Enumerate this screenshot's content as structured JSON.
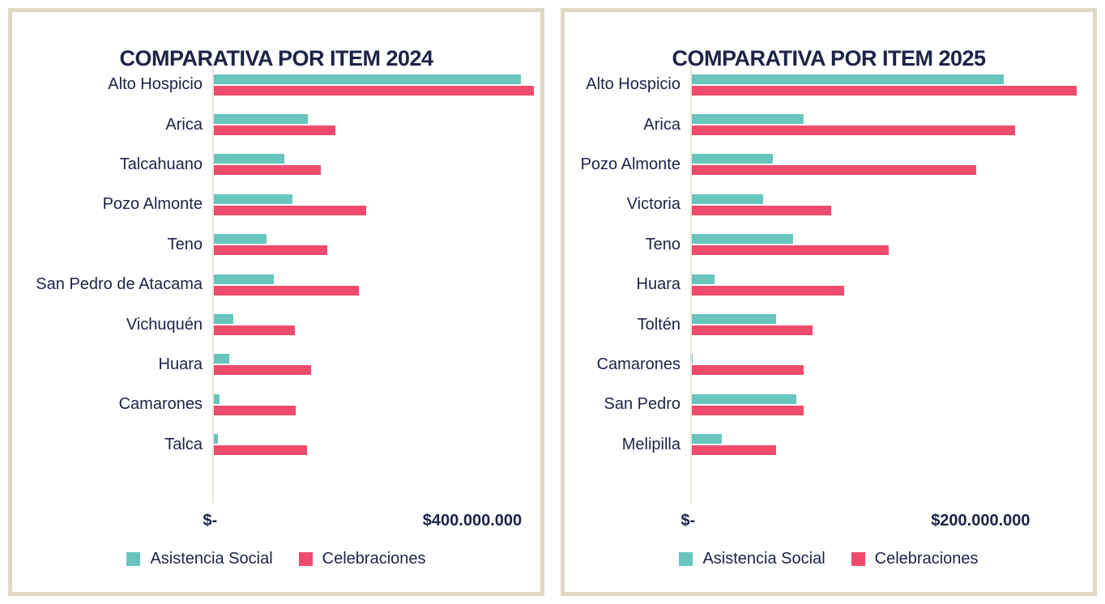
{
  "colors": {
    "asistencia_social": "#68c5bb",
    "celebraciones": "#f04a6d",
    "text_navy": "#1d2347",
    "card_border": "#ded8c5",
    "axis_line": "#ece8db"
  },
  "chart_data": [
    {
      "type": "bar",
      "orientation": "horizontal",
      "title": "COMPARATIVA POR ITEM 2024",
      "categories": [
        "Alto Hospicio",
        "Arica",
        "Talcahuano",
        "Pozo Almonte",
        "Teno",
        "San Pedro de Atacama",
        "Vichuquén",
        "Huara",
        "Camarones",
        "Talca"
      ],
      "series": [
        {
          "name": "Asistencia Social",
          "color": "#68c5bb",
          "values": [
            475000000,
            147000000,
            111000000,
            123000000,
            83000000,
            95000000,
            32000000,
            26000000,
            11000000,
            9000000
          ]
        },
        {
          "name": "Celebraciones",
          "color": "#f04a6d",
          "values": [
            495000000,
            189000000,
            167000000,
            237000000,
            177000000,
            226000000,
            127000000,
            152000000,
            128000000,
            146000000
          ]
        }
      ],
      "x_ticks": [
        {
          "label": "$-",
          "value": 0
        },
        {
          "label": "$400.000.000",
          "value": 400000000
        }
      ],
      "xlim": [
        0,
        496000000
      ],
      "grid": false,
      "legend_position": "bottom"
    },
    {
      "type": "bar",
      "orientation": "horizontal",
      "title": "COMPARATIVA POR ITEM 2025",
      "categories": [
        "Alto Hospicio",
        "Arica",
        "Pozo Almonte",
        "Victoria",
        "Teno",
        "Huara",
        "Toltén",
        "Camarones",
        "San Pedro",
        "Melipilla"
      ],
      "series": [
        {
          "name": "Asistencia Social",
          "color": "#68c5bb",
          "values": [
            216000000,
            78000000,
            57000000,
            50000000,
            71000000,
            17000000,
            59000000,
            1500000,
            73000000,
            22000000
          ]
        },
        {
          "name": "Celebraciones",
          "color": "#f04a6d",
          "values": [
            266000000,
            224000000,
            197000000,
            97000000,
            137000000,
            106000000,
            84000000,
            78000000,
            78000000,
            59000000
          ]
        }
      ],
      "x_ticks": [
        {
          "label": "$-",
          "value": 0
        },
        {
          "label": "$200.000.000",
          "value": 200000000
        }
      ],
      "xlim": [
        0,
        269000000
      ],
      "grid": false,
      "legend_position": "bottom"
    }
  ]
}
